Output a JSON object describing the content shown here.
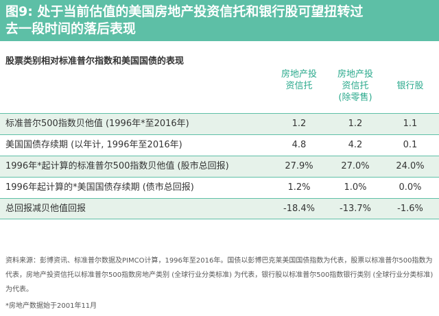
{
  "title": {
    "line1": "图9: 处于当前估值的美国房地产投资信托和银行股可望扭转过",
    "line2": "去一段时间的落后表现"
  },
  "subtitle": "股票类别相对标准普尔指数和美国国债的表现",
  "columns": [
    {
      "line1": "房地产投",
      "line2": "资信托",
      "line3": ""
    },
    {
      "line1": "房地产投",
      "line2": "资信托",
      "line3": "(除零售)"
    },
    {
      "line1": "银行股",
      "line2": "",
      "line3": ""
    }
  ],
  "rows": [
    {
      "label": "标准普尔500指数贝他值 (1996年*至2016年)",
      "values": [
        "1.2",
        "1.2",
        "1.1"
      ]
    },
    {
      "label": "美国国债存续期 (以年计, 1996年至2016年)",
      "values": [
        "4.8",
        "4.2",
        "0.1"
      ]
    },
    {
      "label": "1996年*起计算的标准普尔500指数贝他值 (股市总回报)",
      "values": [
        "27.9%",
        "27.0%",
        "24.0%"
      ]
    },
    {
      "label": "1996年起计算的*美国国债存续期 (债市总回报)",
      "values": [
        "1.2%",
        "1.0%",
        "0.0%"
      ]
    },
    {
      "label": "总回报减贝他值回报",
      "values": [
        "-18.4%",
        "-13.7%",
        "-1.6%"
      ]
    }
  ],
  "source_note": "资料来源：彭博资讯、标准普尔数据及PIMCO计算，1996年至2016年。国债以彭博巴克莱美国国债指数为代表，股票以标准普尔500指数为代表，房地产投资信托以标准普尔500指数房地产类别 (全球行业分类标准) 为代表，银行股以标准普尔500指数银行类别 (全球行业分类标准) 为代表。",
  "footnote": "*房地产数据始于2001年11月",
  "colors": {
    "accent": "#5dbfa6",
    "header_text": "#2aa98c",
    "row_shade": "#e6f2ea"
  }
}
